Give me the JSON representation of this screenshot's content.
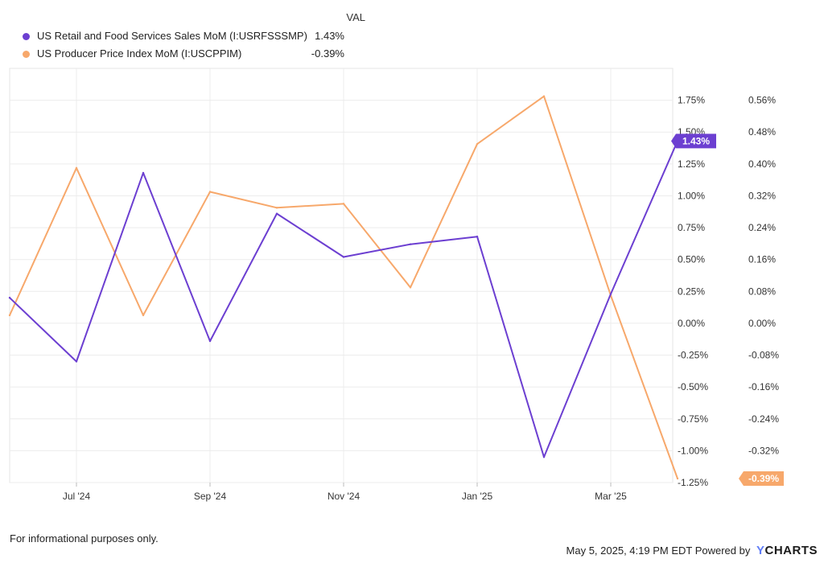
{
  "legend": {
    "header": "VAL",
    "entries": [
      {
        "name": "US Retail and Food Services Sales MoM (I:USRFSSSMP)",
        "value": "1.43%",
        "color": "#6c3fd1"
      },
      {
        "name": "US Producer Price Index MoM (I:USCPPIM)",
        "value": "-0.39%",
        "color": "#f7a86b"
      }
    ]
  },
  "chart_data": {
    "type": "line",
    "x": [
      "Jun '24",
      "Jul '24",
      "Aug '24",
      "Sep '24",
      "Oct '24",
      "Nov '24",
      "Dec '24",
      "Jan '25",
      "Feb '25",
      "Mar '25",
      "Apr '25"
    ],
    "x_tick_labels": [
      "Jul '24",
      "Sep '24",
      "Nov '24",
      "Jan '25",
      "Mar '25"
    ],
    "series": [
      {
        "name": "US Retail and Food Services Sales MoM (I:USRFSSSMP)",
        "axis": "left",
        "values": [
          0.2,
          -0.3,
          1.18,
          -0.14,
          0.86,
          0.52,
          0.62,
          0.68,
          -1.05,
          0.23,
          1.43
        ],
        "color": "#6c3fd1",
        "last_label": "1.43%"
      },
      {
        "name": "US Producer Price Index MoM (I:USCPPIM)",
        "axis": "right",
        "values": [
          0.02,
          0.39,
          0.02,
          0.33,
          0.29,
          0.3,
          0.09,
          0.45,
          0.57,
          0.07,
          -0.39
        ],
        "color": "#f7a86b",
        "last_label": "-0.39%"
      }
    ],
    "left_axis": {
      "ticks": [
        "1.75%",
        "1.50%",
        "1.25%",
        "1.00%",
        "0.75%",
        "0.50%",
        "0.25%",
        "0.00%",
        "-0.25%",
        "-0.50%",
        "-0.75%",
        "-1.00%",
        "-1.25%"
      ],
      "values": [
        1.75,
        1.5,
        1.25,
        1.0,
        0.75,
        0.5,
        0.25,
        0,
        -0.25,
        -0.5,
        -0.75,
        -1.0,
        -1.25
      ],
      "ylim": [
        -1.25,
        2.0
      ]
    },
    "right_axis": {
      "ticks": [
        "0.56%",
        "0.48%",
        "0.40%",
        "0.32%",
        "0.24%",
        "0.16%",
        "0.08%",
        "0.00%",
        "-0.08%",
        "-0.16%",
        "-0.24%",
        "-0.32%"
      ],
      "values": [
        0.56,
        0.48,
        0.4,
        0.32,
        0.24,
        0.16,
        0.08,
        0,
        -0.08,
        -0.16,
        -0.24,
        -0.32
      ],
      "ylim": [
        -0.4,
        0.64
      ]
    },
    "grid": true
  },
  "footer": {
    "disclaimer": "For informational purposes only.",
    "timestamp": "May 5, 2025, 4:19 PM EDT Powered by",
    "logo_y": "Y",
    "logo_rest": "CHARTS"
  }
}
